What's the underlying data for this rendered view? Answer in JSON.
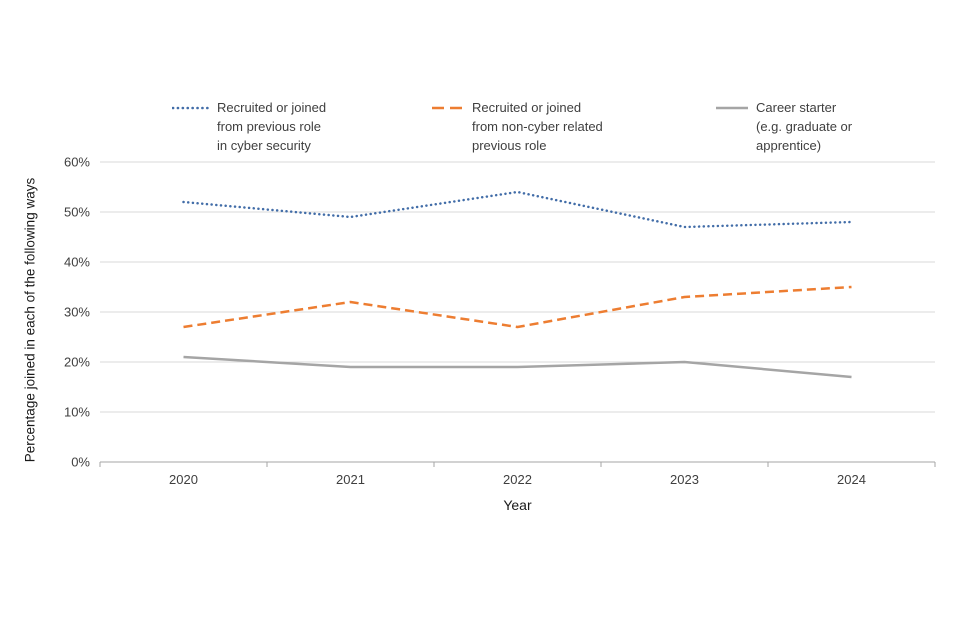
{
  "chart_data": {
    "type": "line",
    "title": "",
    "xlabel": "Year",
    "ylabel": "Percentage joined in each of the following ways",
    "categories": [
      "2020",
      "2021",
      "2022",
      "2023",
      "2024"
    ],
    "ylim": [
      0,
      60
    ],
    "yticks": [
      0,
      10,
      20,
      30,
      40,
      50,
      60
    ],
    "ytick_labels": [
      "0%",
      "10%",
      "20%",
      "30%",
      "40%",
      "50%",
      "60%"
    ],
    "grid": true,
    "legend_position": "top",
    "colors": {
      "blue": "#426da8",
      "orange": "#ED7D31",
      "gray": "#A5A5A5"
    },
    "series": [
      {
        "name": "Recruited or joined\nfrom previous role\nin cyber security",
        "values": [
          52,
          49,
          54,
          47,
          48
        ],
        "color": "#426da8",
        "style": "dotted"
      },
      {
        "name": "Recruited or joined\nfrom non-cyber related\nprevious role",
        "values": [
          27,
          32,
          27,
          33,
          35
        ],
        "color": "#ED7D31",
        "style": "dashed"
      },
      {
        "name": "Career starter\n(e.g. graduate or\napprentice)",
        "values": [
          21,
          19,
          19,
          20,
          17
        ],
        "color": "#A5A5A5",
        "style": "solid"
      }
    ]
  }
}
